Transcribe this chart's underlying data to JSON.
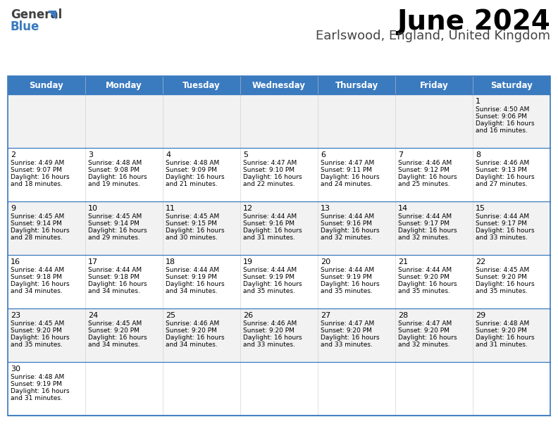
{
  "title": "June 2024",
  "subtitle": "Earlswood, England, United Kingdom",
  "header_bg": "#3a7abf",
  "header_text_color": "#ffffff",
  "days_of_week": [
    "Sunday",
    "Monday",
    "Tuesday",
    "Wednesday",
    "Thursday",
    "Friday",
    "Saturday"
  ],
  "bg_color": "#ffffff",
  "cell_bg_odd": "#f2f2f2",
  "cell_bg_even": "#ffffff",
  "border_color": "#3a7abf",
  "title_color": "#000000",
  "subtitle_color": "#444444",
  "day_num_color": "#000000",
  "cell_text_color": "#000000",
  "calendar_data": [
    [
      null,
      null,
      null,
      null,
      null,
      null,
      {
        "day": "1",
        "sunrise": "4:50 AM",
        "sunset": "9:06 PM",
        "dl1": "16 hours",
        "dl2": "and 16 minutes."
      }
    ],
    [
      {
        "day": "2",
        "sunrise": "4:49 AM",
        "sunset": "9:07 PM",
        "dl1": "16 hours",
        "dl2": "and 18 minutes."
      },
      {
        "day": "3",
        "sunrise": "4:48 AM",
        "sunset": "9:08 PM",
        "dl1": "16 hours",
        "dl2": "and 19 minutes."
      },
      {
        "day": "4",
        "sunrise": "4:48 AM",
        "sunset": "9:09 PM",
        "dl1": "16 hours",
        "dl2": "and 21 minutes."
      },
      {
        "day": "5",
        "sunrise": "4:47 AM",
        "sunset": "9:10 PM",
        "dl1": "16 hours",
        "dl2": "and 22 minutes."
      },
      {
        "day": "6",
        "sunrise": "4:47 AM",
        "sunset": "9:11 PM",
        "dl1": "16 hours",
        "dl2": "and 24 minutes."
      },
      {
        "day": "7",
        "sunrise": "4:46 AM",
        "sunset": "9:12 PM",
        "dl1": "16 hours",
        "dl2": "and 25 minutes."
      },
      {
        "day": "8",
        "sunrise": "4:46 AM",
        "sunset": "9:13 PM",
        "dl1": "16 hours",
        "dl2": "and 27 minutes."
      }
    ],
    [
      {
        "day": "9",
        "sunrise": "4:45 AM",
        "sunset": "9:14 PM",
        "dl1": "16 hours",
        "dl2": "and 28 minutes."
      },
      {
        "day": "10",
        "sunrise": "4:45 AM",
        "sunset": "9:14 PM",
        "dl1": "16 hours",
        "dl2": "and 29 minutes."
      },
      {
        "day": "11",
        "sunrise": "4:45 AM",
        "sunset": "9:15 PM",
        "dl1": "16 hours",
        "dl2": "and 30 minutes."
      },
      {
        "day": "12",
        "sunrise": "4:44 AM",
        "sunset": "9:16 PM",
        "dl1": "16 hours",
        "dl2": "and 31 minutes."
      },
      {
        "day": "13",
        "sunrise": "4:44 AM",
        "sunset": "9:16 PM",
        "dl1": "16 hours",
        "dl2": "and 32 minutes."
      },
      {
        "day": "14",
        "sunrise": "4:44 AM",
        "sunset": "9:17 PM",
        "dl1": "16 hours",
        "dl2": "and 32 minutes."
      },
      {
        "day": "15",
        "sunrise": "4:44 AM",
        "sunset": "9:17 PM",
        "dl1": "16 hours",
        "dl2": "and 33 minutes."
      }
    ],
    [
      {
        "day": "16",
        "sunrise": "4:44 AM",
        "sunset": "9:18 PM",
        "dl1": "16 hours",
        "dl2": "and 34 minutes."
      },
      {
        "day": "17",
        "sunrise": "4:44 AM",
        "sunset": "9:18 PM",
        "dl1": "16 hours",
        "dl2": "and 34 minutes."
      },
      {
        "day": "18",
        "sunrise": "4:44 AM",
        "sunset": "9:19 PM",
        "dl1": "16 hours",
        "dl2": "and 34 minutes."
      },
      {
        "day": "19",
        "sunrise": "4:44 AM",
        "sunset": "9:19 PM",
        "dl1": "16 hours",
        "dl2": "and 35 minutes."
      },
      {
        "day": "20",
        "sunrise": "4:44 AM",
        "sunset": "9:19 PM",
        "dl1": "16 hours",
        "dl2": "and 35 minutes."
      },
      {
        "day": "21",
        "sunrise": "4:44 AM",
        "sunset": "9:20 PM",
        "dl1": "16 hours",
        "dl2": "and 35 minutes."
      },
      {
        "day": "22",
        "sunrise": "4:45 AM",
        "sunset": "9:20 PM",
        "dl1": "16 hours",
        "dl2": "and 35 minutes."
      }
    ],
    [
      {
        "day": "23",
        "sunrise": "4:45 AM",
        "sunset": "9:20 PM",
        "dl1": "16 hours",
        "dl2": "and 35 minutes."
      },
      {
        "day": "24",
        "sunrise": "4:45 AM",
        "sunset": "9:20 PM",
        "dl1": "16 hours",
        "dl2": "and 34 minutes."
      },
      {
        "day": "25",
        "sunrise": "4:46 AM",
        "sunset": "9:20 PM",
        "dl1": "16 hours",
        "dl2": "and 34 minutes."
      },
      {
        "day": "26",
        "sunrise": "4:46 AM",
        "sunset": "9:20 PM",
        "dl1": "16 hours",
        "dl2": "and 33 minutes."
      },
      {
        "day": "27",
        "sunrise": "4:47 AM",
        "sunset": "9:20 PM",
        "dl1": "16 hours",
        "dl2": "and 33 minutes."
      },
      {
        "day": "28",
        "sunrise": "4:47 AM",
        "sunset": "9:20 PM",
        "dl1": "16 hours",
        "dl2": "and 32 minutes."
      },
      {
        "day": "29",
        "sunrise": "4:48 AM",
        "sunset": "9:20 PM",
        "dl1": "16 hours",
        "dl2": "and 31 minutes."
      }
    ],
    [
      {
        "day": "30",
        "sunrise": "4:48 AM",
        "sunset": "9:19 PM",
        "dl1": "16 hours",
        "dl2": "and 31 minutes."
      },
      null,
      null,
      null,
      null,
      null,
      null
    ]
  ]
}
